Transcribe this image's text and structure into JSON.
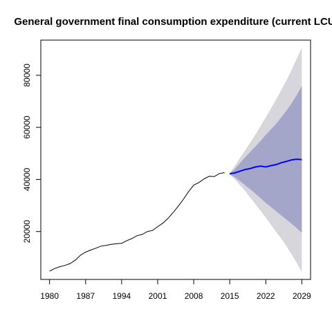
{
  "chart_data": {
    "type": "line",
    "title": "General government final consumption expenditure (current LCU)",
    "xlabel": "",
    "ylabel": "",
    "xlim": [
      1978.3,
      2030.7
    ],
    "ylim": [
      1600,
      93500
    ],
    "x_ticks": [
      1980,
      1987,
      1994,
      2001,
      2008,
      2015,
      2022,
      2029
    ],
    "y_ticks": [
      20000,
      40000,
      60000,
      80000
    ],
    "grid": false,
    "legend": "none",
    "colors": {
      "history": "#000000",
      "forecast": "#0000ff",
      "band_80": "#a3a6c9",
      "band_95": "#d6d6dc"
    },
    "series": [
      {
        "x": [
          1980,
          1981,
          1982,
          1983,
          1984,
          1985,
          1986,
          1987,
          1988,
          1989,
          1990,
          1991,
          1992,
          1993,
          1994,
          1995,
          1996,
          1997,
          1998,
          1999,
          2000,
          2001,
          2002,
          2003,
          2004,
          2005,
          2006,
          2007,
          2008,
          2009,
          2010,
          2011,
          2012,
          2013,
          2014
        ],
        "values": [
          4800,
          5800,
          6500,
          7000,
          7700,
          9000,
          10900,
          12100,
          12900,
          13600,
          14400,
          14700,
          15100,
          15300,
          15500,
          16500,
          17300,
          18400,
          18900,
          20000,
          20400,
          21900,
          23200,
          25000,
          27300,
          29700,
          32400,
          35300,
          37800,
          38800,
          40200,
          41200,
          41100,
          42300,
          42600
        ]
      },
      {
        "x": [
          2015,
          2016,
          2017,
          2018,
          2019,
          2020,
          2021,
          2022,
          2023,
          2024,
          2025,
          2026,
          2027,
          2028,
          2029
        ],
        "values": [
          42200,
          42500,
          43200,
          43800,
          44200,
          44800,
          45100,
          44800,
          45300,
          45700,
          46400,
          46900,
          47500,
          47800,
          47600
        ]
      }
    ],
    "forecast_band_80": {
      "x": [
        2015,
        2016,
        2017,
        2018,
        2019,
        2020,
        2021,
        2022,
        2023,
        2024,
        2025,
        2026,
        2027,
        2028,
        2029
      ],
      "lower": [
        42000,
        40800,
        39400,
        37800,
        36200,
        34500,
        32800,
        31000,
        29400,
        27800,
        26200,
        24600,
        23000,
        21400,
        19500
      ],
      "upper": [
        42300,
        44000,
        46300,
        48500,
        50600,
        52700,
        54800,
        57100,
        59200,
        61300,
        63800,
        66400,
        69200,
        72300,
        75900
      ]
    },
    "forecast_band_95": {
      "x": [
        2015,
        2016,
        2017,
        2018,
        2019,
        2020,
        2021,
        2022,
        2023,
        2024,
        2025,
        2026,
        2027,
        2028,
        2029
      ],
      "lower": [
        41900,
        40000,
        37800,
        35500,
        33000,
        30500,
        28000,
        25300,
        22600,
        19900,
        17300,
        14400,
        11300,
        8000,
        4500
      ],
      "upper": [
        42400,
        45200,
        48300,
        51200,
        54200,
        57300,
        60500,
        63800,
        67200,
        70700,
        74300,
        78000,
        82000,
        86300,
        90600
      ]
    }
  }
}
